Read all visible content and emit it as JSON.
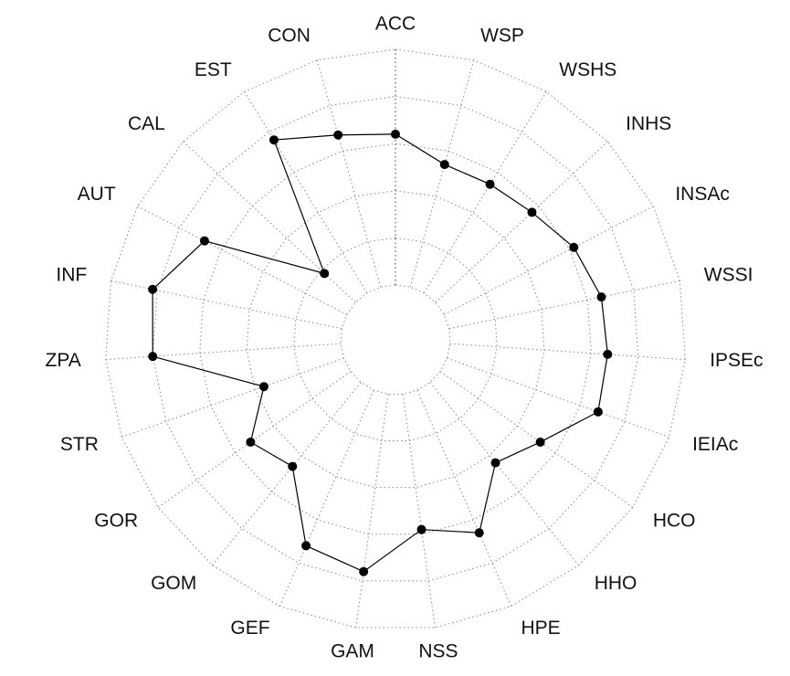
{
  "chart_data": {
    "type": "radar",
    "categories": [
      "ACC",
      "WSP",
      "WSHS",
      "INHS",
      "INSAc",
      "WSSI",
      "IPSEc",
      "IEIAc",
      "HCO",
      "HHO",
      "HPE",
      "NSS",
      "GAM",
      "GEF",
      "GOM",
      "GOR",
      "STR",
      "ZPA",
      "INF",
      "AUT",
      "CAL",
      "EST",
      "CON"
    ],
    "values": [
      3.2,
      2.7,
      2.7,
      2.8,
      3.1,
      3.3,
      3.35,
      3.4,
      2.6,
      2.2,
      3.3,
      2.9,
      3.8,
      3.6,
      2.3,
      2.6,
      1.8,
      4.0,
      4.1,
      3.4,
      0.9,
      3.8,
      3.35
    ],
    "color": "#000000",
    "ylim": [
      0,
      5
    ],
    "yticks": [
      0,
      1,
      2,
      3,
      4,
      5
    ],
    "grid": true
  }
}
